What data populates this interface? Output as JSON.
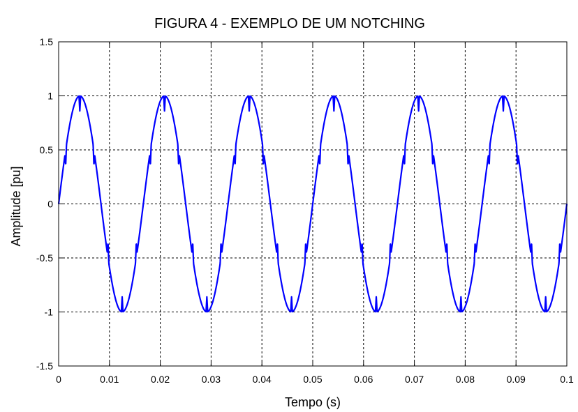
{
  "chart_data": {
    "type": "line",
    "title": "FIGURA 4 - EXEMPLO DE UM NOTCHING",
    "xlabel": "Tempo (s)",
    "ylabel": "Amplitude [pu]",
    "xlim": [
      0,
      0.1
    ],
    "ylim": [
      -1.5,
      1.5
    ],
    "x_ticks": [
      0,
      0.01,
      0.02,
      0.03,
      0.04,
      0.05,
      0.06,
      0.07,
      0.08,
      0.09,
      0.1
    ],
    "x_tick_labels": [
      "0",
      "0.01",
      "0.02",
      "0.03",
      "0.04",
      "0.05",
      "0.06",
      "0.07",
      "0.08",
      "0.09",
      "0.1"
    ],
    "y_ticks": [
      1.5,
      1,
      0.5,
      0,
      -0.5,
      -1,
      -1.5
    ],
    "y_tick_labels": [
      "1.5",
      "1",
      "0.5",
      "0",
      "-0.5",
      "-1",
      "-1.5"
    ],
    "grid": true,
    "series": [
      {
        "color": "#0000ff",
        "waveform": {
          "amplitude": 1,
          "frequency_hz": 60,
          "notch_phases_deg": [
            30,
            90,
            150,
            210,
            270,
            330
          ],
          "notch_depth": 0.14
        }
      }
    ]
  }
}
